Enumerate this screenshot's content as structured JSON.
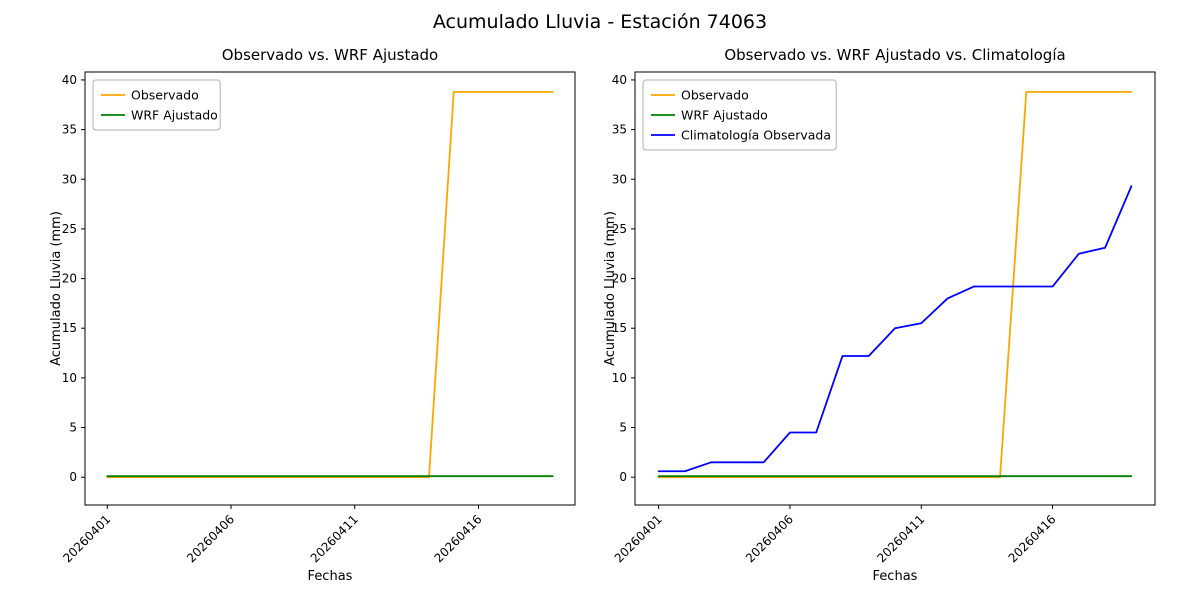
{
  "figure": {
    "title": "Acumulado Lluvia - Estación 74063",
    "background": "#ffffff"
  },
  "chart_data": [
    {
      "type": "line",
      "title": "Observado vs. WRF Ajustado",
      "xlabel": "Fechas",
      "ylabel": "Acumulado Lluvia (mm)",
      "dates": [
        "20260401",
        "20260402",
        "20260403",
        "20260404",
        "20260405",
        "20260406",
        "20260407",
        "20260408",
        "20260409",
        "20260410",
        "20260411",
        "20260412",
        "20260413",
        "20260414",
        "20260415",
        "20260416",
        "20260417",
        "20260418",
        "20260419"
      ],
      "x_ticks": {
        "values": [
          1,
          6,
          11,
          16
        ],
        "labels": [
          "20260401",
          "20260406",
          "20260411",
          "20260416"
        ]
      },
      "y_ticks": [
        0,
        5,
        10,
        15,
        20,
        25,
        30,
        35,
        40
      ],
      "xlim": [
        0.1,
        19.9
      ],
      "ylim": [
        -2.8,
        40.8
      ],
      "grid": false,
      "legend_position": "upper left",
      "series": [
        {
          "name": "Observado",
          "color": "#ffa500",
          "values": [
            0,
            0,
            0,
            0,
            0,
            0,
            0,
            0,
            0,
            0,
            0,
            0,
            0,
            0,
            38.8,
            38.8,
            38.8,
            38.8,
            38.8
          ]
        },
        {
          "name": "WRF Ajustado",
          "color": "#008000",
          "values": [
            0.1,
            0.1,
            0.1,
            0.1,
            0.1,
            0.1,
            0.1,
            0.1,
            0.1,
            0.1,
            0.1,
            0.1,
            0.1,
            0.1,
            0.1,
            0.1,
            0.1,
            0.1,
            0.1
          ]
        }
      ]
    },
    {
      "type": "line",
      "title": "Observado vs. WRF Ajustado vs. Climatología",
      "xlabel": "Fechas",
      "ylabel": "Acumulado Lluvia (mm)",
      "dates": [
        "20260401",
        "20260402",
        "20260403",
        "20260404",
        "20260405",
        "20260406",
        "20260407",
        "20260408",
        "20260409",
        "20260410",
        "20260411",
        "20260412",
        "20260413",
        "20260414",
        "20260415",
        "20260416",
        "20260417",
        "20260418",
        "20260419"
      ],
      "x_ticks": {
        "values": [
          1,
          6,
          11,
          16
        ],
        "labels": [
          "20260401",
          "20260406",
          "20260411",
          "20260416"
        ]
      },
      "y_ticks": [
        0,
        5,
        10,
        15,
        20,
        25,
        30,
        35,
        40
      ],
      "xlim": [
        0.1,
        19.9
      ],
      "ylim": [
        -2.8,
        40.8
      ],
      "grid": false,
      "legend_position": "upper left",
      "series": [
        {
          "name": "Observado",
          "color": "#ffa500",
          "values": [
            0,
            0,
            0,
            0,
            0,
            0,
            0,
            0,
            0,
            0,
            0,
            0,
            0,
            0,
            38.8,
            38.8,
            38.8,
            38.8,
            38.8
          ]
        },
        {
          "name": "WRF Ajustado",
          "color": "#008000",
          "values": [
            0.1,
            0.1,
            0.1,
            0.1,
            0.1,
            0.1,
            0.1,
            0.1,
            0.1,
            0.1,
            0.1,
            0.1,
            0.1,
            0.1,
            0.1,
            0.1,
            0.1,
            0.1,
            0.1
          ]
        },
        {
          "name": "Climatología Observada",
          "color": "#0000ff",
          "values": [
            0.6,
            0.6,
            1.5,
            1.5,
            1.5,
            4.5,
            4.5,
            12.2,
            12.2,
            15.0,
            15.5,
            18.0,
            19.2,
            19.2,
            19.2,
            19.2,
            22.5,
            23.1,
            29.3
          ]
        }
      ]
    }
  ]
}
